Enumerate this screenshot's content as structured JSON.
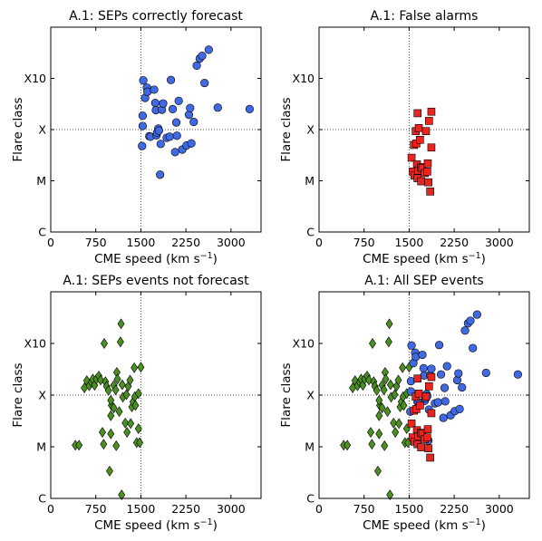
{
  "chart_data": [
    {
      "type": "scatter",
      "title": "A.1: SEPs correctly forecast",
      "xlabel": "CME speed (km s",
      "xlabel_sup": "−1",
      "xlabel_end": ")",
      "ylabel": "Flare class",
      "xlim": [
        0,
        3500
      ],
      "ylim": [
        0,
        4
      ],
      "xticks": [
        0,
        750,
        1500,
        2250,
        3000
      ],
      "xtick_labels": [
        "0",
        "750",
        "1500",
        "2250",
        "3000"
      ],
      "yticks": [
        0,
        1,
        2,
        3
      ],
      "ytick_labels": [
        "C",
        "M",
        "X",
        "X10"
      ],
      "reference_lines": {
        "x": 1500,
        "y": 2
      },
      "series": [
        {
          "marker": "circle",
          "color": "#4169e1",
          "points": [
            [
              1520,
              1.68
            ],
            [
              1530,
              2.07
            ],
            [
              1530,
              2.27
            ],
            [
              1540,
              2.96
            ],
            [
              1570,
              2.62
            ],
            [
              1600,
              2.82
            ],
            [
              1610,
              2.74
            ],
            [
              1640,
              1.87
            ],
            [
              1660,
              1.86
            ],
            [
              1720,
              2.78
            ],
            [
              1740,
              2.52
            ],
            [
              1750,
              2.38
            ],
            [
              1760,
              1.89
            ],
            [
              1770,
              1.94
            ],
            [
              1790,
              2.02
            ],
            [
              1800,
              1.98
            ],
            [
              1820,
              1.12
            ],
            [
              1830,
              1.72
            ],
            [
              1850,
              2.39
            ],
            [
              1870,
              2.51
            ],
            [
              1930,
              1.84
            ],
            [
              1980,
              1.86
            ],
            [
              2000,
              2.97
            ],
            [
              2030,
              2.4
            ],
            [
              2070,
              1.56
            ],
            [
              2090,
              2.14
            ],
            [
              2100,
              1.88
            ],
            [
              2130,
              2.56
            ],
            [
              2190,
              1.61
            ],
            [
              2260,
              1.69
            ],
            [
              2300,
              2.29
            ],
            [
              2320,
              2.42
            ],
            [
              2340,
              1.73
            ],
            [
              2380,
              2.15
            ],
            [
              2430,
              3.25
            ],
            [
              2480,
              3.39
            ],
            [
              2520,
              3.44
            ],
            [
              2560,
              2.91
            ],
            [
              2630,
              3.56
            ],
            [
              2780,
              2.43
            ],
            [
              3310,
              2.4
            ]
          ]
        }
      ]
    },
    {
      "type": "scatter",
      "title": "A.1: False alarms",
      "xlabel": "CME speed (km s",
      "xlabel_sup": "−1",
      "xlabel_end": ")",
      "ylabel": "Flare class",
      "xlim": [
        0,
        3500
      ],
      "ylim": [
        0,
        4
      ],
      "xticks": [
        0,
        750,
        1500,
        2250,
        3000
      ],
      "xtick_labels": [
        "0",
        "750",
        "1500",
        "2250",
        "3000"
      ],
      "yticks": [
        0,
        1,
        2,
        3
      ],
      "ytick_labels": [
        "C",
        "M",
        "X",
        "X10"
      ],
      "reference_lines": {
        "x": 1500,
        "y": 2
      },
      "series": [
        {
          "marker": "square",
          "color": "#e8251f",
          "points": [
            [
              1540,
              1.45
            ],
            [
              1560,
              1.18
            ],
            [
              1580,
              1.7
            ],
            [
              1590,
              1.1
            ],
            [
              1610,
              1.97
            ],
            [
              1620,
              1.73
            ],
            [
              1630,
              1.32
            ],
            [
              1640,
              1.05
            ],
            [
              1650,
              1.2
            ],
            [
              1660,
              2.03
            ],
            [
              1680,
              1.8
            ],
            [
              1700,
              1.27
            ],
            [
              1700,
              0.99
            ],
            [
              1720,
              1.25
            ],
            [
              1760,
              1.15
            ],
            [
              1780,
              1.97
            ],
            [
              1800,
              1.18
            ],
            [
              1810,
              1.34
            ],
            [
              1820,
              0.97
            ],
            [
              1830,
              2.17
            ],
            [
              1850,
              0.79
            ],
            [
              1870,
              1.65
            ],
            [
              1640,
              2.32
            ],
            [
              1870,
              2.35
            ]
          ]
        }
      ]
    },
    {
      "type": "scatter",
      "title": "A.1: SEPs events not forecast",
      "xlabel": "CME speed (km s",
      "xlabel_sup": "−1",
      "xlabel_end": ")",
      "ylabel": "Flare class",
      "xlim": [
        0,
        3500
      ],
      "ylim": [
        0,
        4
      ],
      "xticks": [
        0,
        750,
        1500,
        2250,
        3000
      ],
      "xtick_labels": [
        "0",
        "750",
        "1500",
        "2250",
        "3000"
      ],
      "yticks": [
        0,
        1,
        2,
        3
      ],
      "ytick_labels": [
        "C",
        "M",
        "X",
        "X10"
      ],
      "reference_lines": {
        "x": 1500,
        "y": 2
      },
      "series": [
        {
          "marker": "diamond",
          "color": "#4b8f22",
          "points": [
            [
              410,
              1.03
            ],
            [
              470,
              1.03
            ],
            [
              560,
              2.14
            ],
            [
              600,
              2.28
            ],
            [
              640,
              2.18
            ],
            [
              680,
              2.25
            ],
            [
              700,
              2.31
            ],
            [
              730,
              2.19
            ],
            [
              760,
              2.31
            ],
            [
              800,
              2.37
            ],
            [
              830,
              2.29
            ],
            [
              860,
              1.28
            ],
            [
              880,
              1.05
            ],
            [
              890,
              3.0
            ],
            [
              910,
              2.26
            ],
            [
              930,
              2.17
            ],
            [
              960,
              2.09
            ],
            [
              980,
              0.53
            ],
            [
              1000,
              1.25
            ],
            [
              1000,
              1.6
            ],
            [
              1010,
              1.8
            ],
            [
              1050,
              1.75
            ],
            [
              1050,
              2.19
            ],
            [
              1080,
              2.1
            ],
            [
              1100,
              2.44
            ],
            [
              1110,
              2.31
            ],
            [
              1140,
              1.68
            ],
            [
              1160,
              3.03
            ],
            [
              1180,
              0.07
            ],
            [
              1190,
              2.2
            ],
            [
              1200,
              1.96
            ],
            [
              1240,
              1.46
            ],
            [
              1260,
              2.01
            ],
            [
              1270,
              1.28
            ],
            [
              1290,
              2.17
            ],
            [
              1320,
              2.29
            ],
            [
              1330,
              1.45
            ],
            [
              1350,
              1.77
            ],
            [
              1370,
              1.87
            ],
            [
              1400,
              1.97
            ],
            [
              1410,
              1.8
            ],
            [
              1430,
              1.08
            ],
            [
              1460,
              2.03
            ],
            [
              1460,
              1.35
            ],
            [
              1480,
              1.08
            ],
            [
              1500,
              2.54
            ],
            [
              1170,
              3.38
            ],
            [
              1090,
              1.02
            ],
            [
              1000,
              1.9
            ],
            [
              1390,
              2.53
            ]
          ]
        }
      ]
    },
    {
      "type": "scatter",
      "title": "A.1: All SEP events",
      "xlabel": "CME speed (km s",
      "xlabel_sup": "−1",
      "xlabel_end": ")",
      "ylabel": "Flare class",
      "xlim": [
        0,
        3500
      ],
      "ylim": [
        0,
        4
      ],
      "xticks": [
        0,
        750,
        1500,
        2250,
        3000
      ],
      "xtick_labels": [
        "0",
        "750",
        "1500",
        "2250",
        "3000"
      ],
      "yticks": [
        0,
        1,
        2,
        3
      ],
      "ytick_labels": [
        "C",
        "M",
        "X",
        "X10"
      ],
      "reference_lines": {
        "x": 1500,
        "y": 2
      },
      "series": [
        {
          "marker": "diamond",
          "color": "#4b8f22",
          "ref": 2
        },
        {
          "marker": "circle",
          "color": "#4169e1",
          "ref": 0
        },
        {
          "marker": "square",
          "color": "#e8251f",
          "ref": 1
        }
      ]
    }
  ]
}
